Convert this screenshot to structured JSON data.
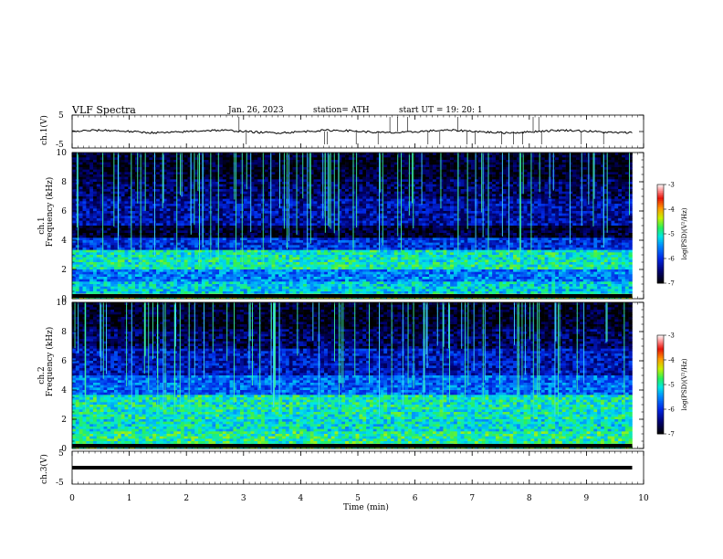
{
  "header": {
    "title": "VLF  Spectra",
    "date": "Jan. 26, 2023",
    "station": "station= ATH",
    "start": "start  UT  =    19: 20: 1"
  },
  "panels": {
    "ch1_signal": {
      "ylabel": "ch.1(V)",
      "ticks": [
        "5",
        "-5"
      ]
    },
    "ch1_spec": {
      "ylabel_top": "ch.1",
      "ylabel": "Frequency (kHz)",
      "ticks": [
        "10",
        "8",
        "6",
        "4",
        "2",
        "0"
      ]
    },
    "ch2_spec": {
      "ylabel_top": "ch.2",
      "ylabel": "Frequency (kHz)",
      "ticks": [
        "10",
        "8",
        "6",
        "4",
        "2",
        "0"
      ]
    },
    "ch3_signal": {
      "ylabel": "ch.3(V)",
      "ticks": [
        "5",
        "-5"
      ]
    }
  },
  "colorbar": {
    "label": "log(PSD)(V²/Hz)",
    "ticks": [
      "-3",
      "-4",
      "-5",
      "-6",
      "-7"
    ]
  },
  "chart_data": {
    "type": "heatmap",
    "xlabel": "Time  (min)",
    "x_ticks": [
      "0",
      "1",
      "2",
      "3",
      "4",
      "5",
      "6",
      "7",
      "8",
      "9",
      "10"
    ],
    "xlim": [
      0,
      10
    ],
    "data_end_min": 9.8,
    "signals": [
      {
        "name": "ch.1(V)",
        "ylim": [
          -5,
          5
        ],
        "mean": 0,
        "amplitude": 0.6
      },
      {
        "name": "ch.3(V)",
        "ylim": [
          -5,
          5
        ],
        "mean": 0,
        "amplitude": 0.05
      }
    ],
    "spectrograms": [
      {
        "name": "ch.1",
        "ylim_khz": [
          0,
          10
        ],
        "color_range_log_psd": [
          -7,
          -3
        ],
        "bands": [
          {
            "freq_khz": [
              0.0,
              0.4
            ],
            "log_psd": -4.6
          },
          {
            "freq_khz": [
              0.4,
              1.2
            ],
            "log_psd": -5.2
          },
          {
            "freq_khz": [
              1.2,
              2.0
            ],
            "log_psd": -5.6
          },
          {
            "freq_khz": [
              2.0,
              3.4
            ],
            "log_psd": -5.0
          },
          {
            "freq_khz": [
              3.4,
              4.2
            ],
            "log_psd": -6.0
          },
          {
            "freq_khz": [
              4.2,
              5.0
            ],
            "log_psd": -6.8
          },
          {
            "freq_khz": [
              5.0,
              6.8
            ],
            "log_psd": -6.3
          },
          {
            "freq_khz": [
              6.8,
              8.2
            ],
            "log_psd": -6.6
          },
          {
            "freq_khz": [
              8.2,
              10.0
            ],
            "log_psd": -6.85
          }
        ]
      },
      {
        "name": "ch.2",
        "ylim_khz": [
          0,
          10
        ],
        "color_range_log_psd": [
          -7,
          -3
        ],
        "bands": [
          {
            "freq_khz": [
              0.0,
              0.4
            ],
            "log_psd": -4.8
          },
          {
            "freq_khz": [
              0.4,
              1.2
            ],
            "log_psd": -4.9
          },
          {
            "freq_khz": [
              1.2,
              2.0
            ],
            "log_psd": -5.1
          },
          {
            "freq_khz": [
              2.0,
              3.6
            ],
            "log_psd": -5.0
          },
          {
            "freq_khz": [
              3.6,
              5.0
            ],
            "log_psd": -5.7
          },
          {
            "freq_khz": [
              5.0,
              6.8
            ],
            "log_psd": -6.2
          },
          {
            "freq_khz": [
              6.8,
              8.2
            ],
            "log_psd": -6.6
          },
          {
            "freq_khz": [
              8.2,
              10.0
            ],
            "log_psd": -6.85
          }
        ]
      }
    ]
  }
}
